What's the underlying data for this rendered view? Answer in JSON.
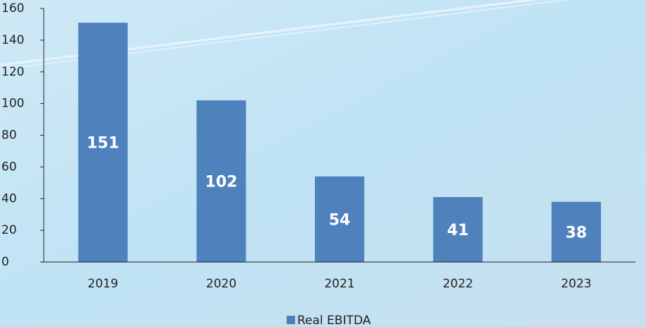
{
  "chart_data": {
    "type": "bar",
    "categories": [
      "2019",
      "2020",
      "2021",
      "2022",
      "2023"
    ],
    "series": [
      {
        "name": "Real EBITDA",
        "color": "#4f81bd",
        "values": [
          151,
          102,
          54,
          41,
          38
        ]
      }
    ],
    "ylim": [
      0,
      160
    ],
    "yticks": [
      0,
      20,
      40,
      60,
      80,
      100,
      120,
      140,
      160
    ],
    "legend": "bottom",
    "data_labels": true
  }
}
